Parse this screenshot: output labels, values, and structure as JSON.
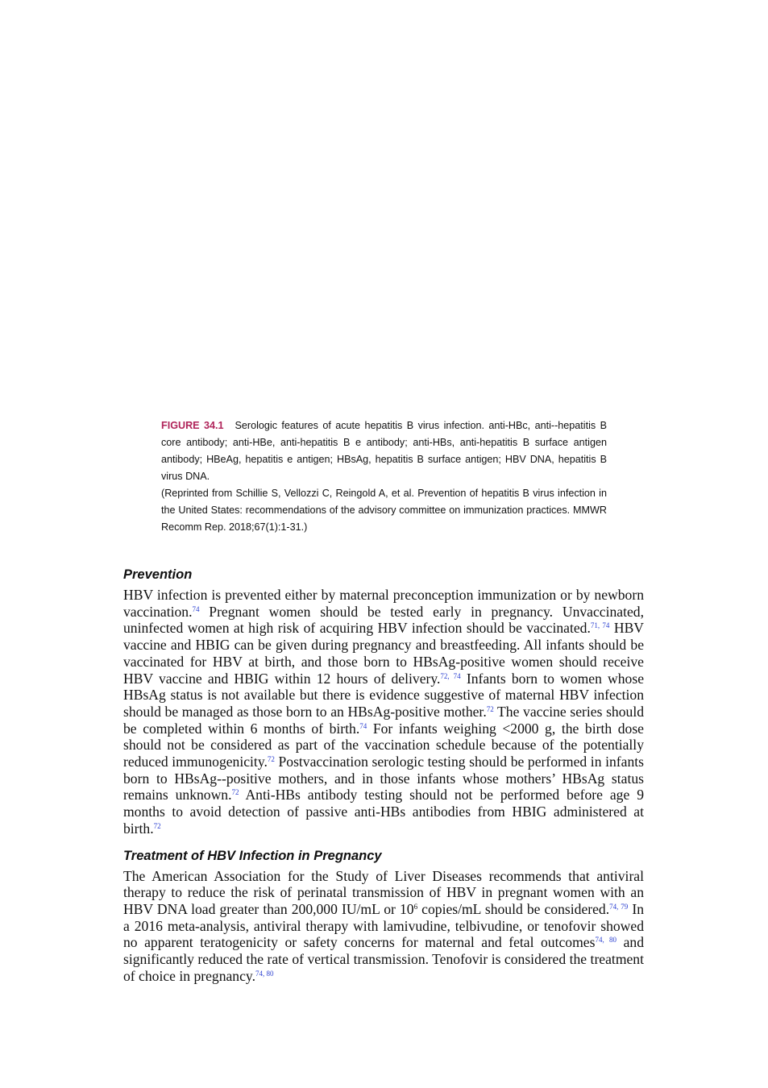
{
  "figure": {
    "label": "FIGURE 34.1",
    "caption": "Serologic features of acute hepatitis B virus infection. anti-HBc, anti--hepatitis B core antibody; anti-HBe, anti-hepatitis B e antibody; anti-HBs, anti-hepatitis B surface antigen antibody; HBeAg, hepatitis e antigen; HBsAg, hepatitis B surface antigen; HBV DNA, hepatitis B virus DNA.",
    "source": "(Reprinted from Schillie S, Vellozzi C, Reingold A, et al. Prevention of hepatitis B virus infection in the United States: recommendations of the advisory committee on immunization practices. MMWR Recomm Rep. 2018;67(1):1-31.)"
  },
  "sections": [
    {
      "heading": "Prevention",
      "paragraph": [
        "HBV infection is prevented either by maternal preconception immunization or by newborn vaccination.",
        {
          "sup": "74"
        },
        " Pregnant women should be tested early in pregnancy. Unvaccinated, uninfected women at high risk of acquiring HBV infection should be vaccinated.",
        {
          "sup": "71, 74"
        },
        " HBV vaccine and HBIG can be given during pregnancy and breastfeeding. All infants should be vaccinated for HBV at birth, and those born to HBsAg-positive women should receive HBV vaccine and HBIG within 12 hours of delivery.",
        {
          "sup": "72, 74"
        },
        " Infants born to women whose HBsAg status is not available but there is evidence suggestive of maternal HBV infection should be managed as those born to an HBsAg-positive mother.",
        {
          "sup": "72"
        },
        " The vaccine series should be completed within 6 months of birth.",
        {
          "sup": "74"
        },
        " For infants weighing <2000 g, the birth dose should not be considered as part of the vaccination schedule because of the potentially reduced immunogenicity.",
        {
          "sup": "72"
        },
        " Postvaccination serologic testing should be performed in infants born to HBsAg--positive mothers, and in those infants whose mothers’ HBsAg status remains unknown.",
        {
          "sup": "72"
        },
        " Anti-HBs antibody testing should not be performed before age 9 months to avoid detection of passive anti-HBs antibodies from HBIG administered at birth.",
        {
          "sup": "72"
        }
      ]
    },
    {
      "heading": "Treatment of HBV Infection in Pregnancy",
      "paragraph": [
        "The American Association for the Study of Liver Diseases recommends that antiviral therapy to reduce the risk of perinatal transmission of HBV in pregnant women with an HBV DNA load greater than 200,000 IU/mL or 10",
        {
          "exp": "6"
        },
        " copies/mL should be considered.",
        {
          "sup": "74, 79"
        },
        " In a 2016 meta-analysis, antiviral therapy with lamivudine, telbivudine, or tenofovir showed no apparent teratogenicity or safety concerns for maternal and fetal outcomes",
        {
          "sup": "74, 80"
        },
        " and significantly reduced the rate of vertical transmission. Tenofovir is considered the treatment of choice in pregnancy.",
        {
          "sup": "74, 80"
        }
      ]
    }
  ]
}
